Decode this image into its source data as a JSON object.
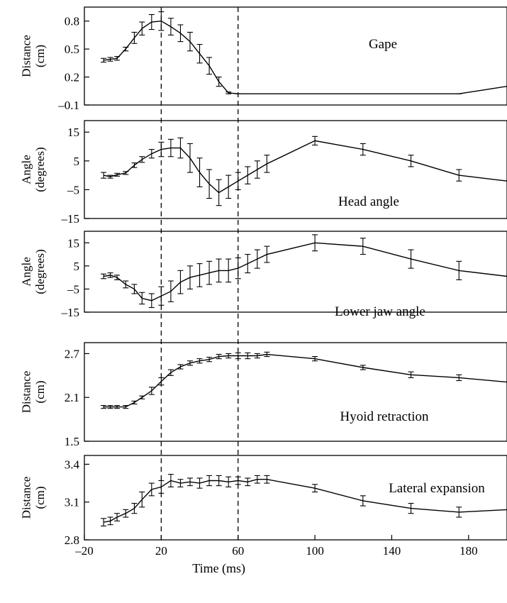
{
  "chart_data": [
    {
      "type": "line",
      "annotation": "Gape",
      "ylabel": [
        "Distance",
        "(cm)"
      ],
      "ylim": [
        -0.1,
        0.95
      ],
      "yticks": [
        -0.1,
        0.2,
        0.5,
        0.8
      ],
      "ytick_labels": [
        "–0.1",
        "0.2",
        "0.5",
        "0.8"
      ],
      "x": [
        -10,
        -6.5,
        -3,
        1.5,
        6,
        10,
        15,
        20,
        25,
        30,
        35,
        40,
        45,
        50,
        55
      ],
      "y": [
        0.38,
        0.39,
        0.4,
        0.5,
        0.62,
        0.72,
        0.79,
        0.8,
        0.74,
        0.67,
        0.58,
        0.45,
        0.32,
        0.15,
        0.03
      ],
      "err": [
        0.02,
        0.02,
        0.02,
        0.02,
        0.06,
        0.07,
        0.08,
        0.1,
        0.09,
        0.09,
        0.1,
        0.1,
        0.09,
        0.05,
        0.01
      ],
      "tail_x": [
        60,
        175,
        200
      ],
      "tail_y": [
        0.02,
        0.02,
        0.1
      ]
    },
    {
      "type": "line",
      "annotation": "Head angle",
      "ylabel": [
        "Angle",
        "(degrees)"
      ],
      "ylim": [
        -15,
        19
      ],
      "yticks": [
        -15,
        -5,
        5,
        15
      ],
      "ytick_labels": [
        "–15",
        "–5",
        "5",
        "15"
      ],
      "x": [
        -10,
        -6.5,
        -3,
        1.5,
        6,
        10,
        15,
        20,
        25,
        30,
        35,
        40,
        45,
        50,
        55,
        60,
        65,
        70,
        75,
        100,
        125,
        150,
        175,
        200
      ],
      "y": [
        0,
        -0.5,
        0.2,
        0.8,
        3.5,
        5.5,
        7.5,
        9,
        9.5,
        9.5,
        6,
        1,
        -3,
        -6,
        -4,
        -2,
        0,
        2,
        4,
        12,
        9,
        5,
        0,
        -2
      ],
      "err": [
        1,
        0.5,
        0.5,
        0.5,
        0.8,
        1,
        1.5,
        2.5,
        3,
        3.5,
        5,
        5,
        5,
        4.5,
        4,
        3,
        3,
        3,
        3,
        1.5,
        2,
        2,
        2,
        0
      ]
    },
    {
      "type": "line",
      "annotation": "Lower jaw angle",
      "ylabel": [
        "Angle",
        "(degrees)"
      ],
      "ylim": [
        -15,
        20
      ],
      "yticks": [
        -15,
        -5,
        5,
        15
      ],
      "ytick_labels": [
        "–15",
        "–5",
        "5",
        "15"
      ],
      "x": [
        -10,
        -6.5,
        -3,
        1.5,
        6,
        10,
        15,
        20,
        25,
        30,
        35,
        40,
        45,
        50,
        55,
        60,
        65,
        70,
        75,
        100,
        125,
        150,
        175,
        200
      ],
      "y": [
        0.5,
        1,
        0,
        -3,
        -5,
        -9,
        -10,
        -8,
        -6,
        -2,
        0,
        1,
        2,
        3,
        3,
        4,
        6,
        8,
        10,
        15,
        13.5,
        8,
        3,
        0.5
      ],
      "err": [
        1,
        1,
        1,
        1.5,
        2,
        2.5,
        3,
        4,
        4.5,
        5,
        5,
        5,
        5,
        5,
        5,
        4.5,
        4,
        4,
        3.5,
        3.5,
        3.5,
        4,
        4,
        0
      ]
    },
    {
      "type": "line",
      "annotation": "Hyoid retraction",
      "ylabel": [
        "Distance",
        "(cm)"
      ],
      "ylim": [
        1.5,
        2.85
      ],
      "yticks": [
        1.5,
        2.1,
        2.7
      ],
      "ytick_labels": [
        "1.5",
        "2.1",
        "2.7"
      ],
      "x": [
        -10,
        -6.5,
        -3,
        1.5,
        6,
        10,
        15,
        20,
        25,
        30,
        35,
        40,
        45,
        50,
        55,
        60,
        65,
        70,
        75,
        100,
        125,
        150,
        175,
        200
      ],
      "y": [
        1.97,
        1.97,
        1.97,
        1.97,
        2.03,
        2.1,
        2.19,
        2.32,
        2.44,
        2.52,
        2.57,
        2.6,
        2.62,
        2.66,
        2.67,
        2.67,
        2.67,
        2.67,
        2.69,
        2.63,
        2.51,
        2.41,
        2.37,
        2.31
      ],
      "err": [
        0.02,
        0.02,
        0.02,
        0.02,
        0.02,
        0.02,
        0.05,
        0.05,
        0.04,
        0.03,
        0.03,
        0.03,
        0.03,
        0.03,
        0.03,
        0.04,
        0.04,
        0.03,
        0.03,
        0.03,
        0.03,
        0.04,
        0.04,
        0
      ]
    },
    {
      "type": "line",
      "annotation": "Lateral expansion",
      "ylabel": [
        "Distance",
        "(cm)"
      ],
      "ylim": [
        2.8,
        3.47
      ],
      "yticks": [
        2.8,
        3.1,
        3.4
      ],
      "ytick_labels": [
        "2.8",
        "3.1",
        "3.4"
      ],
      "xticks": [
        -20,
        20,
        60,
        100,
        140,
        180
      ],
      "xtick_labels": [
        "–20",
        "20",
        "60",
        "100",
        "140",
        "180"
      ],
      "xlabel": "Time (ms)",
      "x": [
        -10,
        -6.5,
        -3,
        1.5,
        6,
        10,
        15,
        20,
        25,
        30,
        35,
        40,
        45,
        50,
        55,
        60,
        65,
        70,
        75,
        100,
        125,
        150,
        175,
        200
      ],
      "y": [
        2.94,
        2.95,
        2.98,
        3.01,
        3.05,
        3.12,
        3.2,
        3.22,
        3.27,
        3.25,
        3.26,
        3.25,
        3.27,
        3.27,
        3.26,
        3.27,
        3.26,
        3.28,
        3.28,
        3.21,
        3.11,
        3.05,
        3.02,
        3.04
      ],
      "err": [
        0.03,
        0.03,
        0.03,
        0.03,
        0.04,
        0.06,
        0.05,
        0.05,
        0.05,
        0.03,
        0.03,
        0.04,
        0.04,
        0.04,
        0.04,
        0.03,
        0.03,
        0.03,
        0.03,
        0.03,
        0.04,
        0.04,
        0.04,
        0
      ]
    }
  ],
  "xlim": [
    -20,
    200
  ],
  "vlines": [
    20,
    60
  ]
}
